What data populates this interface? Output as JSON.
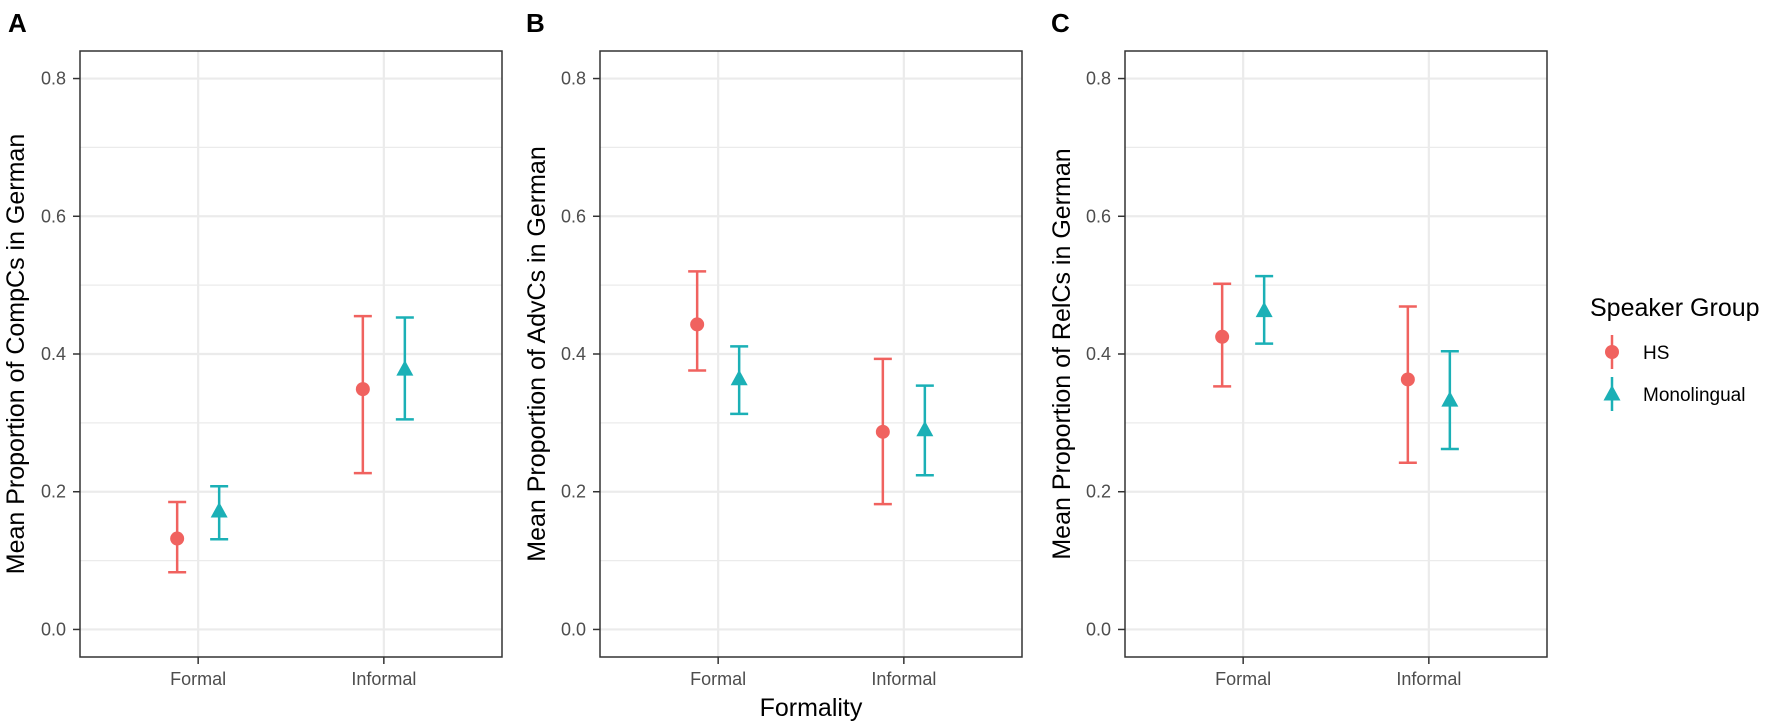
{
  "chart_data": [
    {
      "type": "scatter",
      "panel_label": "A",
      "ylabel": "Mean Proportion of CompCs in German",
      "xlabel": "",
      "categories": [
        "Formal",
        "Informal"
      ],
      "yticks": [
        "0.0",
        "0.2",
        "0.4",
        "0.6",
        "0.8"
      ],
      "ylim": [
        -0.04,
        0.84
      ],
      "series": [
        {
          "name": "HS",
          "values": [
            0.132,
            0.349
          ],
          "lower": [
            0.083,
            0.227
          ],
          "upper": [
            0.185,
            0.455
          ]
        },
        {
          "name": "Monolingual",
          "values": [
            0.172,
            0.378
          ],
          "lower": [
            0.131,
            0.305
          ],
          "upper": [
            0.208,
            0.453
          ]
        }
      ]
    },
    {
      "type": "scatter",
      "panel_label": "B",
      "ylabel": "Mean Proportion of AdvCs in German",
      "xlabel": "Formality",
      "categories": [
        "Formal",
        "Informal"
      ],
      "yticks": [
        "0.0",
        "0.2",
        "0.4",
        "0.6",
        "0.8"
      ],
      "ylim": [
        -0.04,
        0.84
      ],
      "series": [
        {
          "name": "HS",
          "values": [
            0.443,
            0.287
          ],
          "lower": [
            0.376,
            0.182
          ],
          "upper": [
            0.52,
            0.393
          ]
        },
        {
          "name": "Monolingual",
          "values": [
            0.364,
            0.29
          ],
          "lower": [
            0.313,
            0.224
          ],
          "upper": [
            0.411,
            0.354
          ]
        }
      ]
    },
    {
      "type": "scatter",
      "panel_label": "C",
      "ylabel": "Mean Proportion of RelCs in German",
      "xlabel": "",
      "categories": [
        "Formal",
        "Informal"
      ],
      "yticks": [
        "0.0",
        "0.2",
        "0.4",
        "0.6",
        "0.8"
      ],
      "ylim": [
        -0.04,
        0.84
      ],
      "series": [
        {
          "name": "HS",
          "values": [
            0.425,
            0.363
          ],
          "lower": [
            0.353,
            0.242
          ],
          "upper": [
            0.502,
            0.469
          ]
        },
        {
          "name": "Monolingual",
          "values": [
            0.463,
            0.333
          ],
          "lower": [
            0.415,
            0.262
          ],
          "upper": [
            0.513,
            0.404
          ]
        }
      ]
    }
  ],
  "legend": {
    "title": "Speaker Group",
    "items": [
      {
        "label": "HS",
        "shape": "circle",
        "color": "#F0625F"
      },
      {
        "label": "Monolingual",
        "shape": "triangle",
        "color": "#1BB0B6"
      }
    ]
  },
  "colors": {
    "HS": "#F0625F",
    "Monolingual": "#1BB0B6",
    "grid": "#EBEBEB",
    "border": "#333333"
  }
}
